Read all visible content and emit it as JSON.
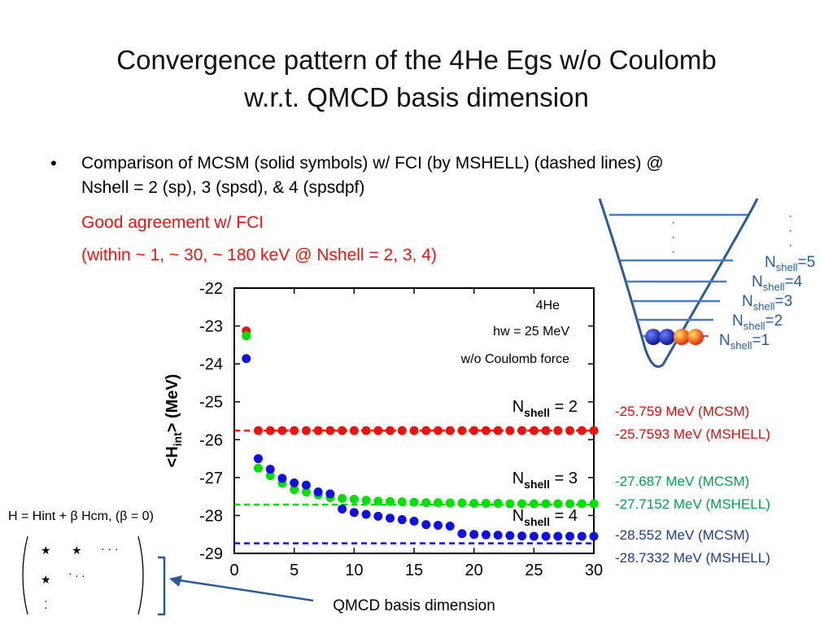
{
  "slide": {
    "title_line1": "Convergence pattern of the 4He Egs w/o Coulomb",
    "title_line2": "w.r.t. QMCD basis dimension",
    "bullet_line1": "Comparison of MCSM (solid symbols) w/ FCI (by MSHELL) (dashed lines) @",
    "bullet_line2": "Nshell = 2 (sp), 3 (spsd), & 4 (spsdpf)",
    "agreement": "Good agreement w/ FCI",
    "within": "(within ~ 1, ~ 30, ~ 180 keV @ Nshell = 2, 3, 4)",
    "hamiltonian": "H = Hint + β Hcm, (β = 0)",
    "results": {
      "n2_mcsm": "-25.759 MeV (MCSM)",
      "n2_mshell": "-25.7593 MeV (MSHELL)",
      "n3_mcsm": "-27.687 MeV (MCSM)",
      "n3_mshell": "-27.7152 MeV (MSHELL)",
      "n4_mcsm": "-28.552 MeV (MCSM)",
      "n4_mshell": "-28.7332 MeV (MSHELL)"
    },
    "shell_labels": [
      "5",
      "4",
      "3",
      "2",
      "1"
    ],
    "shell_prefix": "N",
    "shell_sub": "shell",
    "colors": {
      "red": "#e8140e",
      "green": "#00e000",
      "blue": "#1010e0",
      "well": "#2b5a9b"
    }
  },
  "chart_data": {
    "type": "scatter",
    "xlabel": "QMCD basis dimension",
    "ylabel_main": "<H",
    "ylabel_sub": "int",
    "ylabel_tail": "> (MeV)",
    "xlim": [
      0,
      30
    ],
    "ylim": [
      -29,
      -22
    ],
    "xticks": [
      0,
      5,
      10,
      15,
      20,
      25,
      30
    ],
    "yticks": [
      -22,
      -23,
      -24,
      -25,
      -26,
      -27,
      -28,
      -29
    ],
    "annotations": [
      "4He",
      "hw = 25 MeV",
      "w/o Coulomb force"
    ],
    "series_labels": [
      {
        "pre": "N",
        "sub": "shell",
        "post": " = 2"
      },
      {
        "pre": "N",
        "sub": "shell",
        "post": " = 3"
      },
      {
        "pre": "N",
        "sub": "shell",
        "post": " = 4"
      }
    ],
    "series": [
      {
        "color": "#e8140e",
        "fci": -25.7593,
        "x": [
          1,
          2,
          3,
          4,
          5,
          6,
          7,
          8,
          9,
          10,
          11,
          12,
          13,
          14,
          15,
          16,
          17,
          18,
          19,
          20,
          21,
          22,
          23,
          24,
          25,
          26,
          27,
          28,
          29,
          30
        ],
        "y": [
          -23.13,
          -25.76,
          -25.76,
          -25.76,
          -25.76,
          -25.76,
          -25.76,
          -25.76,
          -25.76,
          -25.76,
          -25.76,
          -25.76,
          -25.76,
          -25.76,
          -25.76,
          -25.76,
          -25.76,
          -25.76,
          -25.76,
          -25.76,
          -25.76,
          -25.76,
          -25.76,
          -25.76,
          -25.76,
          -25.76,
          -25.76,
          -25.76,
          -25.76,
          -25.76
        ]
      },
      {
        "color": "#00e000",
        "fci": -27.7152,
        "x": [
          1,
          2,
          3,
          4,
          5,
          6,
          7,
          8,
          9,
          10,
          11,
          12,
          13,
          14,
          15,
          16,
          17,
          18,
          19,
          20,
          21,
          22,
          23,
          24,
          25,
          26,
          27,
          28,
          29,
          30
        ],
        "y": [
          -23.26,
          -26.75,
          -26.95,
          -27.15,
          -27.32,
          -27.38,
          -27.46,
          -27.53,
          -27.55,
          -27.57,
          -27.6,
          -27.62,
          -27.63,
          -27.64,
          -27.65,
          -27.66,
          -27.66,
          -27.67,
          -27.67,
          -27.68,
          -27.68,
          -27.68,
          -27.69,
          -27.69,
          -27.69,
          -27.69,
          -27.69,
          -27.69,
          -27.69,
          -27.69
        ]
      },
      {
        "color": "#1010e0",
        "fci": -28.7332,
        "x": [
          1,
          2,
          3,
          4,
          5,
          6,
          7,
          8,
          9,
          10,
          11,
          12,
          13,
          14,
          15,
          16,
          17,
          18,
          19,
          20,
          21,
          22,
          23,
          24,
          25,
          26,
          27,
          28,
          29,
          30
        ],
        "y": [
          -23.86,
          -26.5,
          -26.78,
          -27.02,
          -27.14,
          -27.2,
          -27.38,
          -27.43,
          -27.83,
          -27.92,
          -27.97,
          -28.02,
          -28.07,
          -28.11,
          -28.15,
          -28.24,
          -28.26,
          -28.28,
          -28.48,
          -28.5,
          -28.51,
          -28.52,
          -28.53,
          -28.54,
          -28.55,
          -28.55,
          -28.55,
          -28.55,
          -28.55,
          -28.55
        ]
      }
    ]
  }
}
